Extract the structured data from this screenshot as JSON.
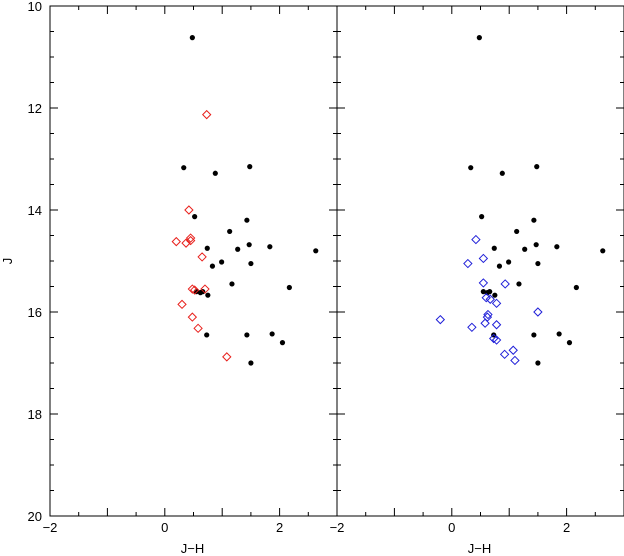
{
  "chart_data": [
    {
      "type": "scatter",
      "panel": "left",
      "xlabel": "J−H",
      "ylabel": "J",
      "xlim": [
        -2,
        3
      ],
      "ylim": [
        20,
        10
      ],
      "y_inverted": true,
      "x_ticks": [
        {
          "v": -2,
          "label": "−2"
        },
        {
          "v": 0,
          "label": "0"
        },
        {
          "v": 2,
          "label": "2"
        }
      ],
      "y_ticks": [
        {
          "v": 10,
          "label": "10"
        },
        {
          "v": 12,
          "label": "12"
        },
        {
          "v": 14,
          "label": "14"
        },
        {
          "v": 16,
          "label": "16"
        },
        {
          "v": 18,
          "label": "18"
        },
        {
          "v": 20,
          "label": "20"
        }
      ],
      "series": [
        {
          "marker": "dot",
          "color": "#000000",
          "points": [
            [
              0.48,
              10.62
            ],
            [
              0.33,
              13.17
            ],
            [
              1.48,
              13.15
            ],
            [
              0.88,
              13.28
            ],
            [
              0.52,
              14.13
            ],
            [
              1.43,
              14.2
            ],
            [
              1.13,
              14.42
            ],
            [
              1.47,
              14.68
            ],
            [
              1.83,
              14.72
            ],
            [
              0.74,
              14.75
            ],
            [
              1.27,
              14.77
            ],
            [
              2.63,
              14.8
            ],
            [
              0.99,
              15.02
            ],
            [
              0.83,
              15.1
            ],
            [
              1.5,
              15.05
            ],
            [
              1.17,
              15.45
            ],
            [
              2.17,
              15.52
            ],
            [
              0.55,
              15.6
            ],
            [
              0.62,
              15.62
            ],
            [
              0.66,
              15.6
            ],
            [
              0.75,
              15.67
            ],
            [
              0.73,
              16.45
            ],
            [
              1.43,
              16.45
            ],
            [
              1.87,
              16.43
            ],
            [
              2.05,
              16.6
            ],
            [
              1.5,
              17.0
            ]
          ]
        },
        {
          "marker": "diamond",
          "color": "#e8201c",
          "points": [
            [
              0.73,
              12.13
            ],
            [
              0.42,
              14.0
            ],
            [
              0.2,
              14.62
            ],
            [
              0.37,
              14.65
            ],
            [
              0.45,
              14.55
            ],
            [
              0.45,
              14.6
            ],
            [
              0.65,
              14.92
            ],
            [
              0.48,
              15.55
            ],
            [
              0.52,
              15.57
            ],
            [
              0.7,
              15.55
            ],
            [
              0.3,
              15.85
            ],
            [
              0.48,
              16.1
            ],
            [
              0.58,
              16.32
            ],
            [
              1.08,
              16.88
            ]
          ]
        }
      ]
    },
    {
      "type": "scatter",
      "panel": "right",
      "xlabel": "J−H",
      "ylabel": "",
      "xlim": [
        -2,
        3
      ],
      "ylim": [
        20,
        10
      ],
      "y_inverted": true,
      "x_ticks": [
        {
          "v": -2,
          "label": "−2"
        },
        {
          "v": 0,
          "label": "0"
        },
        {
          "v": 2,
          "label": "2"
        }
      ],
      "y_ticks": [],
      "series": [
        {
          "marker": "dot",
          "color": "#000000",
          "points": [
            [
              0.48,
              10.62
            ],
            [
              0.33,
              13.17
            ],
            [
              1.48,
              13.15
            ],
            [
              0.88,
              13.28
            ],
            [
              0.52,
              14.13
            ],
            [
              1.43,
              14.2
            ],
            [
              1.13,
              14.42
            ],
            [
              1.47,
              14.68
            ],
            [
              1.83,
              14.72
            ],
            [
              0.74,
              14.75
            ],
            [
              1.27,
              14.77
            ],
            [
              2.63,
              14.8
            ],
            [
              0.99,
              15.02
            ],
            [
              0.83,
              15.1
            ],
            [
              1.5,
              15.05
            ],
            [
              1.17,
              15.45
            ],
            [
              2.17,
              15.52
            ],
            [
              0.55,
              15.6
            ],
            [
              0.62,
              15.62
            ],
            [
              0.66,
              15.6
            ],
            [
              0.75,
              15.67
            ],
            [
              0.73,
              16.45
            ],
            [
              1.43,
              16.45
            ],
            [
              1.87,
              16.43
            ],
            [
              2.05,
              16.6
            ],
            [
              1.5,
              17.0
            ]
          ]
        },
        {
          "marker": "diamond",
          "color": "#1f1fd8",
          "points": [
            [
              0.42,
              14.58
            ],
            [
              0.55,
              14.95
            ],
            [
              0.28,
              15.05
            ],
            [
              0.55,
              15.43
            ],
            [
              0.93,
              15.45
            ],
            [
              0.6,
              15.72
            ],
            [
              0.67,
              15.75
            ],
            [
              0.78,
              15.83
            ],
            [
              1.5,
              16.0
            ],
            [
              0.62,
              16.1
            ],
            [
              0.63,
              16.05
            ],
            [
              -0.2,
              16.15
            ],
            [
              0.58,
              16.22
            ],
            [
              0.35,
              16.3
            ],
            [
              0.78,
              16.25
            ],
            [
              0.73,
              16.52
            ],
            [
              0.78,
              16.55
            ],
            [
              1.07,
              16.75
            ],
            [
              0.92,
              16.83
            ],
            [
              1.1,
              16.95
            ]
          ]
        }
      ]
    }
  ]
}
